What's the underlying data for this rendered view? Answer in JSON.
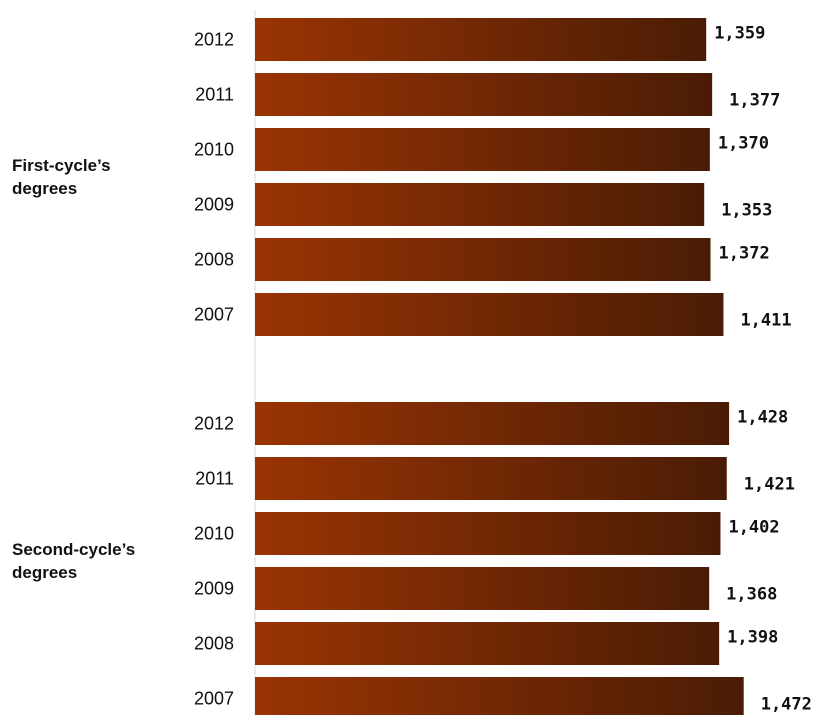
{
  "chart_data": {
    "type": "bar",
    "orientation": "horizontal",
    "grid": false,
    "legend": "none",
    "xlim": [
      0,
      1530
    ],
    "groups": [
      {
        "label": [
          "First-cycle’s",
          "degrees"
        ],
        "categories": [
          "2012",
          "2011",
          "2010",
          "2009",
          "2008",
          "2007"
        ],
        "values": [
          1359,
          1377,
          1370,
          1353,
          1372,
          1411
        ],
        "value_labels": [
          "1,359",
          "1,377",
          "1,370",
          "1,353",
          "1,372",
          "1,411"
        ]
      },
      {
        "label": [
          "Second-cycle’s",
          "degrees"
        ],
        "categories": [
          "2012",
          "2011",
          "2010",
          "2009",
          "2008",
          "2007"
        ],
        "values": [
          1428,
          1421,
          1402,
          1368,
          1398,
          1472
        ],
        "value_labels": [
          "1,428",
          "1,421",
          "1,402",
          "1,368",
          "1,398",
          "1,472"
        ]
      }
    ],
    "colors": {
      "bar_start": "#9a3403",
      "bar_end": "#4a1c05",
      "axis": "#d9d9d9"
    }
  }
}
